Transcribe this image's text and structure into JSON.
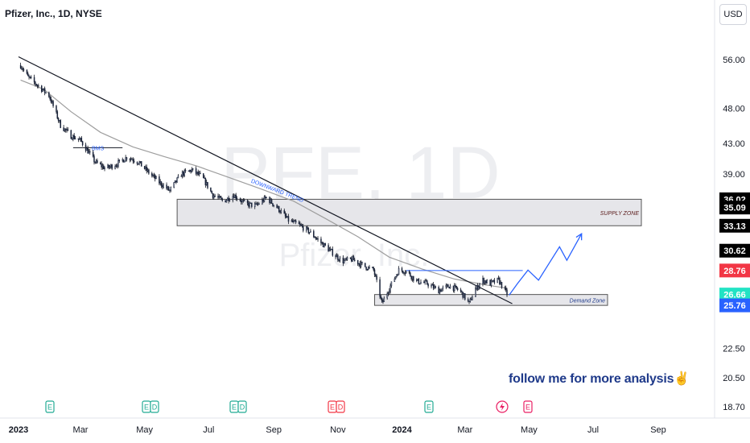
{
  "header": {
    "title": "Pfizer, Inc., 1D, NYSE",
    "currency": "USD"
  },
  "watermark": {
    "symbol": "PFE, 1D",
    "name": "Pfizer, Inc."
  },
  "annotations": {
    "bms": "BMS",
    "downward_trend": "DOWNWARD TREND",
    "supply_zone": "SUPPLY ZONE",
    "demand_zone": "Demand Zone",
    "follow": "follow me for more analysis✌"
  },
  "events": [
    {
      "type": "E",
      "color": "#22ab94"
    },
    {
      "type": "ED",
      "color": "#22ab94"
    },
    {
      "type": "ED",
      "color": "#22ab94"
    },
    {
      "type": "ED",
      "color": "#f23645"
    },
    {
      "type": "E",
      "color": "#22ab94"
    },
    {
      "type": "flash",
      "color": "#e91e63"
    },
    {
      "type": "E",
      "color": "#e91e63"
    }
  ],
  "colors": {
    "up": "#1f2a44",
    "down": "#131722",
    "ma": "#9e9e9e",
    "trend": "#131722",
    "projection": "#2962ff",
    "zone": "#e6e6ea"
  },
  "chart_data": {
    "type": "candlestick",
    "ticker": "PFE",
    "interval": "1D",
    "y_axis": {
      "scale": "log",
      "ticks": [
        56.0,
        48.0,
        43.0,
        39.0,
        22.5,
        20.5,
        18.7
      ],
      "tick_labels": [
        "56.00",
        "48.00",
        "43.00",
        "39.00",
        "22.50",
        "20.50",
        "18.70"
      ],
      "ylim": [
        18.0,
        61.0
      ]
    },
    "x_axis": {
      "ticks": [
        "2023-01-01",
        "2023-03-01",
        "2023-05-01",
        "2023-07-01",
        "2023-09-01",
        "2023-11-01",
        "2024-01-01",
        "2024-03-01",
        "2024-05-01",
        "2024-07-01",
        "2024-09-01"
      ],
      "tick_labels": [
        "2023",
        "Mar",
        "May",
        "Jul",
        "Sep",
        "Nov",
        "2024",
        "Mar",
        "May",
        "Jul",
        "Sep"
      ],
      "xlim": [
        "2022-12-27",
        "2024-10-01"
      ]
    },
    "price_labels": [
      {
        "value": 36.02,
        "text": "36.02",
        "bg": "#000000"
      },
      {
        "value": 35.09,
        "text": "35.09",
        "bg": "#000000"
      },
      {
        "value": 33.13,
        "text": "33.13",
        "bg": "#000000"
      },
      {
        "value": 30.62,
        "text": "30.62",
        "bg": "#000000"
      },
      {
        "value": 28.76,
        "text": "28.76",
        "bg": "#f23645"
      },
      {
        "value": 26.66,
        "text": "26.66",
        "bg": "#22e3c4"
      },
      {
        "value": 25.76,
        "text": "25.76",
        "bg": "#2962ff"
      }
    ],
    "price_path": [
      [
        "2023-01-03",
        55.0
      ],
      [
        "2023-01-10",
        53.0
      ],
      [
        "2023-01-20",
        51.5
      ],
      [
        "2023-01-30",
        50.0
      ],
      [
        "2023-02-10",
        45.5
      ],
      [
        "2023-02-20",
        44.0
      ],
      [
        "2023-03-01",
        43.4
      ],
      [
        "2023-03-15",
        40.5
      ],
      [
        "2023-03-25",
        39.7
      ],
      [
        "2023-04-05",
        40.3
      ],
      [
        "2023-04-15",
        41.2
      ],
      [
        "2023-04-25",
        40.5
      ],
      [
        "2023-05-05",
        39.2
      ],
      [
        "2023-05-15",
        38.0
      ],
      [
        "2023-05-25",
        37.0
      ],
      [
        "2023-06-05",
        39.0
      ],
      [
        "2023-06-15",
        39.5
      ],
      [
        "2023-06-25",
        38.6
      ],
      [
        "2023-07-05",
        36.5
      ],
      [
        "2023-07-15",
        35.8
      ],
      [
        "2023-07-25",
        36.5
      ],
      [
        "2023-08-05",
        35.5
      ],
      [
        "2023-08-15",
        35.3
      ],
      [
        "2023-08-25",
        36.2
      ],
      [
        "2023-09-05",
        35.0
      ],
      [
        "2023-09-15",
        33.7
      ],
      [
        "2023-09-25",
        33.2
      ],
      [
        "2023-10-05",
        32.5
      ],
      [
        "2023-10-15",
        31.5
      ],
      [
        "2023-10-25",
        30.6
      ],
      [
        "2023-11-05",
        29.6
      ],
      [
        "2023-11-15",
        29.8
      ],
      [
        "2023-11-25",
        29.2
      ],
      [
        "2023-12-05",
        28.8
      ],
      [
        "2023-12-13",
        25.9
      ],
      [
        "2023-12-20",
        27.2
      ],
      [
        "2023-12-29",
        28.8
      ],
      [
        "2024-01-05",
        28.7
      ],
      [
        "2024-01-15",
        27.8
      ],
      [
        "2024-01-25",
        27.6
      ],
      [
        "2024-02-05",
        27.0
      ],
      [
        "2024-02-15",
        27.4
      ],
      [
        "2024-02-25",
        27.0
      ],
      [
        "2024-03-01",
        26.4
      ],
      [
        "2024-03-05",
        25.9
      ],
      [
        "2024-03-10",
        27.0
      ],
      [
        "2024-03-18",
        27.9
      ],
      [
        "2024-03-25",
        27.6
      ],
      [
        "2024-04-02",
        27.9
      ],
      [
        "2024-04-10",
        26.7
      ]
    ],
    "moving_average": [
      [
        "2023-01-03",
        52.5
      ],
      [
        "2023-01-25",
        51.0
      ],
      [
        "2023-02-20",
        47.5
      ],
      [
        "2023-03-20",
        44.5
      ],
      [
        "2023-04-20",
        42.5
      ],
      [
        "2023-05-20",
        41.2
      ],
      [
        "2023-06-20",
        40.0
      ],
      [
        "2023-07-20",
        38.6
      ],
      [
        "2023-08-20",
        37.2
      ],
      [
        "2023-09-20",
        35.8
      ],
      [
        "2023-10-20",
        33.9
      ],
      [
        "2023-11-20",
        32.0
      ],
      [
        "2023-12-20",
        30.0
      ],
      [
        "2024-01-20",
        28.9
      ],
      [
        "2024-02-20",
        28.0
      ],
      [
        "2024-03-20",
        27.5
      ],
      [
        "2024-04-10",
        27.2
      ]
    ],
    "trendline": [
      [
        "2023-01-01",
        56.5
      ],
      [
        "2024-04-15",
        25.9
      ]
    ],
    "supply_zone": {
      "from": "2023-06-01",
      "to": "2024-08-01",
      "top": 36.02,
      "bottom": 33.13
    },
    "demand_zone": {
      "from": "2023-12-06",
      "to": "2024-08-01",
      "top": 26.66,
      "bottom": 25.76
    },
    "resistance_line": {
      "from": "2024-01-05",
      "to": "2024-04-25",
      "value": 28.76
    },
    "bms_line": {
      "from": "2023-02-22",
      "to": "2023-04-10",
      "value": 42.4
    },
    "projection": [
      [
        "2024-04-12",
        26.6
      ],
      [
        "2024-04-20",
        27.6
      ],
      [
        "2024-04-30",
        28.8
      ],
      [
        "2024-05-10",
        27.9
      ],
      [
        "2024-05-20",
        29.4
      ],
      [
        "2024-05-30",
        31.0
      ],
      [
        "2024-06-06",
        29.7
      ],
      [
        "2024-06-20",
        32.3
      ]
    ]
  }
}
